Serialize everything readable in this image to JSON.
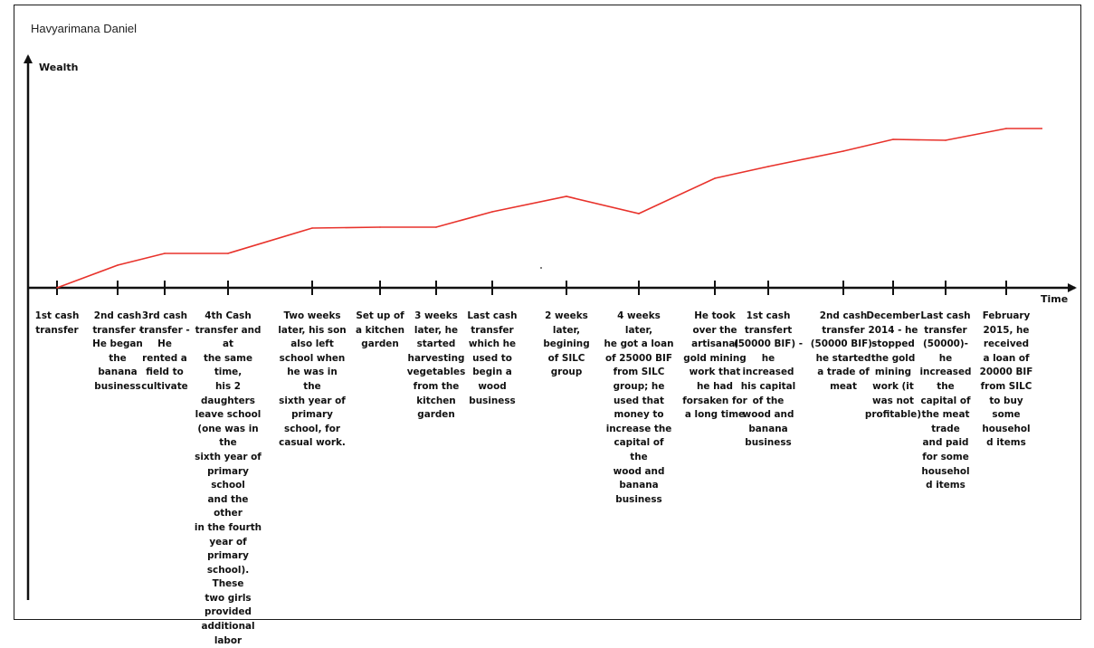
{
  "chart_data": {
    "type": "line",
    "title": "Havyarimana Daniel",
    "xlabel": "Time",
    "ylabel": "Wealth",
    "grid": false,
    "line_color": "#e8322b",
    "events": [
      {
        "label": "1st cash\ntransfer",
        "y": 0
      },
      {
        "label": "2nd cash\ntransfer -\nHe began\nthe\nbanana\nbusiness",
        "y": 25
      },
      {
        "label": "3rd cash\ntransfer -\nHe\nrented a\nfield to\ncultivate",
        "y": 38
      },
      {
        "label": "4th Cash\ntransfer and at\nthe same time,\nhis 2\ndaughters\nleave school\n(one was in the\nsixth year of\nprimary school\nand the other\nin the fourth\nyear of primary\nschool). These\ntwo girls\nprovided\nadditional\nlabor",
        "y": 38
      },
      {
        "label": "Two weeks\nlater, his son\nalso left\nschool when\nhe was in the\nsixth year of\nprimary\nschool, for\ncasual work.",
        "y": 66
      },
      {
        "label": "Set up of\na kitchen\ngarden",
        "y": 67
      },
      {
        "label": "3 weeks\nlater, he\nstarted\nharvesting\nvegetables\nfrom the\nkitchen\ngarden",
        "y": 67
      },
      {
        "label": "Last cash\ntransfer\nwhich he\nused to\nbegin a\nwood\nbusiness",
        "y": 84
      },
      {
        "label": "2 weeks\nlater,\nbegining\nof SILC\ngroup",
        "y": 101
      },
      {
        "label": "4 weeks later,\nhe got a loan\nof 25000 BIF\nfrom SILC\ngroup; he\nused that\nmoney to\nincrease the\ncapital of the\nwood and\nbanana\nbusiness",
        "y": 82
      },
      {
        "label": "He took\nover the\nartisanal\ngold mining\nwork that\nhe had\nforsaken for\na long time",
        "y": 121
      },
      {
        "label": "1st cash\ntransfert\n(50000 BIF) -\nhe\nincreased\nhis capital\nof the\nwood and\nbanana\nbusiness",
        "y": 134
      },
      {
        "label": "2nd cash\ntransfer\n(50000 BIF)-\nhe started\na trade of\nmeat",
        "y": 151
      },
      {
        "label": "December\n2014 - he\nstopped\nthe gold\nmining\nwork (it\nwas not\nprofitable)",
        "y": 164
      },
      {
        "label": "Last cash\ntransfer\n(50000)-\nhe\nincreased\nthe\ncapital of\nthe meat\ntrade\nand paid\nfor some\nhousehol\nd items",
        "y": 163
      },
      {
        "label": "February\n2015, he\nreceived\na loan of\n20000 BIF\nfrom SILC\nto buy\nsome\nhousehol\nd items",
        "y": 176
      }
    ],
    "end_y": 176
  }
}
